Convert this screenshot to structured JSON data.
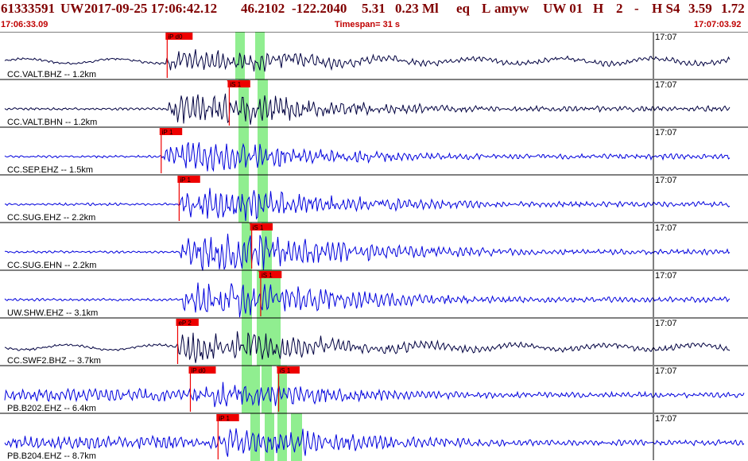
{
  "header": {
    "event_id": "61333591",
    "network": "UW",
    "datetime": "2017-09-25 17:06:42.12",
    "lat": "46.2102",
    "lon": "-122.2040",
    "depth": "5.31",
    "magnitude": "0.23 Ml",
    "etype": "eq",
    "status": "L",
    "analyst": "amyw",
    "source": "UW 01",
    "quality_h": "H",
    "version": "2",
    "dash": "-",
    "quality_s": "H S4",
    "val1": "3.59",
    "val2": "1.72",
    "start_time": "17:06:33.09",
    "timespan": "Timespan=  31 s",
    "end_time": "17:07:03.92"
  },
  "colors": {
    "header_title": "#800000",
    "header_subtitle": "#c00000",
    "trace_dark": "#000040",
    "trace_blue": "#0000dd",
    "pick_flag": "#ee0000",
    "pick_window": "#90ee90",
    "separator": "#000000"
  },
  "traces": [
    {
      "label": "CC.VALT.BHZ -- 1.2km",
      "time_label": "17:07",
      "color": "dark",
      "picks": [
        {
          "text": "iP d0",
          "t": 0.2235
        }
      ],
      "amp": 12,
      "onset": 0.222
    },
    {
      "label": "CC.VALT.BHN -- 1.2km",
      "time_label": "17:07",
      "color": "dark",
      "picks": [
        {
          "text": "iS 1",
          "t": 0.3065
        }
      ],
      "amp": 18,
      "onset": 0.226
    },
    {
      "label": "CC.SEP.EHZ -- 1.5km",
      "time_label": "17:07",
      "color": "blue",
      "picks": [
        {
          "text": "iP 1",
          "t": 0.2155
        }
      ],
      "amp": 16,
      "onset": 0.217
    },
    {
      "label": "CC.SUG.EHZ -- 2.2km",
      "time_label": "17:07",
      "color": "blue",
      "picks": [
        {
          "text": "iP 1",
          "t": 0.2395
        }
      ],
      "amp": 18,
      "onset": 0.24
    },
    {
      "label": "CC.SUG.EHN -- 2.2km",
      "time_label": "17:07",
      "color": "blue",
      "picks": [
        {
          "text": "iS 1",
          "t": 0.3365
        }
      ],
      "amp": 22,
      "onset": 0.242
    },
    {
      "label": "UW.SHW.EHZ -- 3.1km",
      "time_label": "17:07",
      "color": "blue",
      "picks": [
        {
          "text": "iS 1",
          "t": 0.3485
        }
      ],
      "amp": 20,
      "onset": 0.245
    },
    {
      "label": "CC.SWF2.BHZ -- 3.7km",
      "time_label": "17:07",
      "color": "dark",
      "picks": [
        {
          "text": "eP 2",
          "t": 0.2375
        }
      ],
      "amp": 18,
      "onset": 0.237
    },
    {
      "label": "PB.B202.EHZ -- 6.4km",
      "time_label": "17:07",
      "color": "blue",
      "picks": [
        {
          "text": "iP d0",
          "t": 0.2545
        },
        {
          "text": "iS 1",
          "t": 0.3725
        }
      ],
      "amp": 14,
      "onset": 0.255
    },
    {
      "label": "PB.B204.EHZ -- 8.7km",
      "time_label": "17:07",
      "color": "blue",
      "picks": [
        {
          "text": "iP 1",
          "t": 0.2915
        }
      ],
      "amp": 16,
      "onset": 0.292
    }
  ]
}
